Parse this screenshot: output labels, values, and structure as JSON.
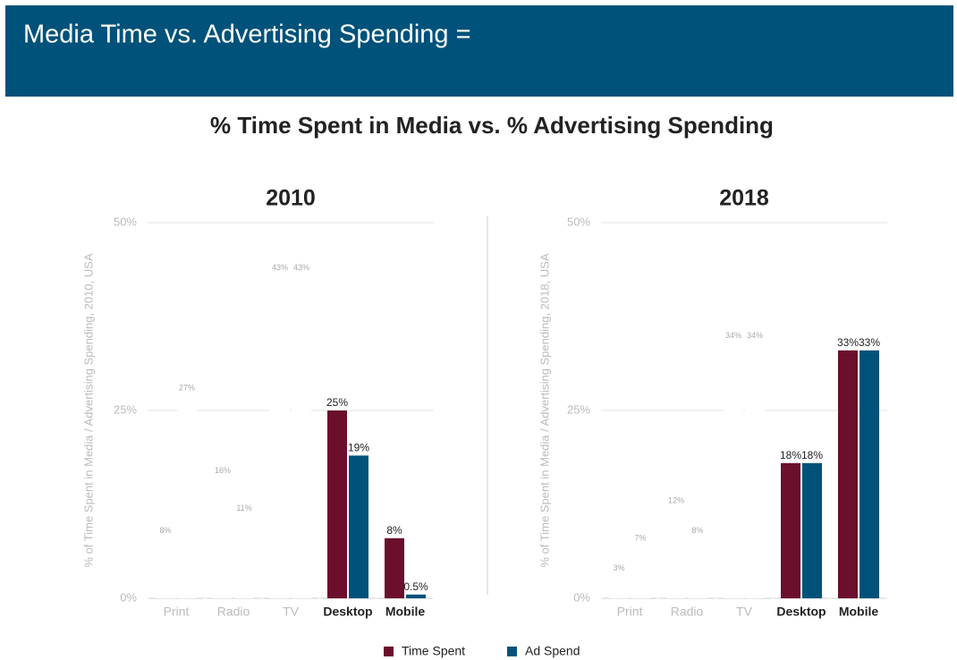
{
  "header": {
    "title": "Media Time vs. Advertising Spending ="
  },
  "subtitle": "% Time Spent in Media vs. % Advertising Spending",
  "chart_data": [
    {
      "type": "bar",
      "title": "2010",
      "y_label": "% of Time Spent in Media / Advertising Spending, 2010, USA",
      "categories": [
        "Print",
        "Radio",
        "TV",
        "Desktop",
        "Mobile"
      ],
      "bold_categories": [
        false,
        false,
        false,
        true,
        true
      ],
      "series": [
        {
          "name": "Time Spent",
          "color": "#6b0f2c",
          "point_colors": [
            "#ffffff",
            "#ffffff",
            "#ffffff",
            "#6b0f2c",
            "#6b0f2c"
          ],
          "values": [
            8,
            16,
            43,
            25,
            8
          ],
          "value_labels": [
            "8%",
            "16%",
            "43%",
            "25%",
            "8%"
          ]
        },
        {
          "name": "Ad Spend",
          "color": "#00527a",
          "point_colors": [
            "#ffffff",
            "#ffffff",
            "#ffffff",
            "#00527a",
            "#00527a"
          ],
          "values": [
            27,
            11,
            43,
            19,
            0.5
          ],
          "value_labels": [
            "27%",
            "11%",
            "43%",
            "19%",
            "0.5%"
          ]
        }
      ],
      "ylim": [
        0,
        50
      ],
      "yticks": [
        {
          "value": 0,
          "label": "0%"
        },
        {
          "value": 25,
          "label": "25%"
        },
        {
          "value": 50,
          "label": "50%"
        }
      ],
      "grid": true
    },
    {
      "type": "bar",
      "title": "2018",
      "y_label": "% of Time Spent in Media / Advertising Spending, 2018, USA",
      "categories": [
        "Print",
        "Radio",
        "TV",
        "Desktop",
        "Mobile"
      ],
      "bold_categories": [
        false,
        false,
        false,
        true,
        true
      ],
      "series": [
        {
          "name": "Time Spent",
          "color": "#6b0f2c",
          "point_colors": [
            "#ffffff",
            "#ffffff",
            "#ffffff",
            "#6b0f2c",
            "#6b0f2c"
          ],
          "values": [
            3,
            12,
            34,
            18,
            33
          ],
          "value_labels": [
            "3%",
            "12%",
            "34%",
            "18%",
            "33%"
          ]
        },
        {
          "name": "Ad Spend",
          "color": "#00527a",
          "point_colors": [
            "#ffffff",
            "#ffffff",
            "#ffffff",
            "#00527a",
            "#00527a"
          ],
          "values": [
            7,
            8,
            34,
            18,
            33
          ],
          "value_labels": [
            "7%",
            "8%",
            "34%",
            "18%",
            "33%"
          ]
        }
      ],
      "ylim": [
        0,
        50
      ],
      "yticks": [
        {
          "value": 0,
          "label": "0%"
        },
        {
          "value": 25,
          "label": "25%"
        },
        {
          "value": 50,
          "label": "50%"
        }
      ],
      "grid": true
    }
  ]
}
